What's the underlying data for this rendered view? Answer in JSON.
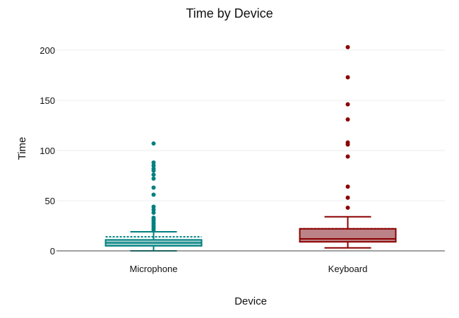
{
  "chart_data": {
    "type": "box",
    "title": "Time by Device",
    "xlabel": "Device",
    "ylabel": "Time",
    "ylim": [
      0,
      220
    ],
    "yticks": [
      0,
      50,
      100,
      150,
      200
    ],
    "grid": true,
    "legend": "none",
    "series": [
      {
        "name": "Microphone",
        "color": "#008080",
        "fill": "#99cccc",
        "whisker_low": 0,
        "q1": 5,
        "median": 8,
        "q3": 11,
        "whisker_high": 19,
        "mean": 14,
        "outliers": [
          21,
          23,
          25,
          27,
          29,
          31,
          33,
          38,
          41,
          44,
          56,
          63,
          72,
          76,
          80,
          82,
          85,
          88,
          107
        ]
      },
      {
        "name": "Keyboard",
        "color": "#8b0000",
        "fill": "#bb8388",
        "whisker_low": 3,
        "q1": 9,
        "median": 12,
        "q3": 22,
        "whisker_high": 34,
        "mean": 22,
        "outliers": [
          43,
          53,
          64,
          94,
          106,
          108,
          131,
          146,
          173,
          203
        ]
      }
    ]
  }
}
